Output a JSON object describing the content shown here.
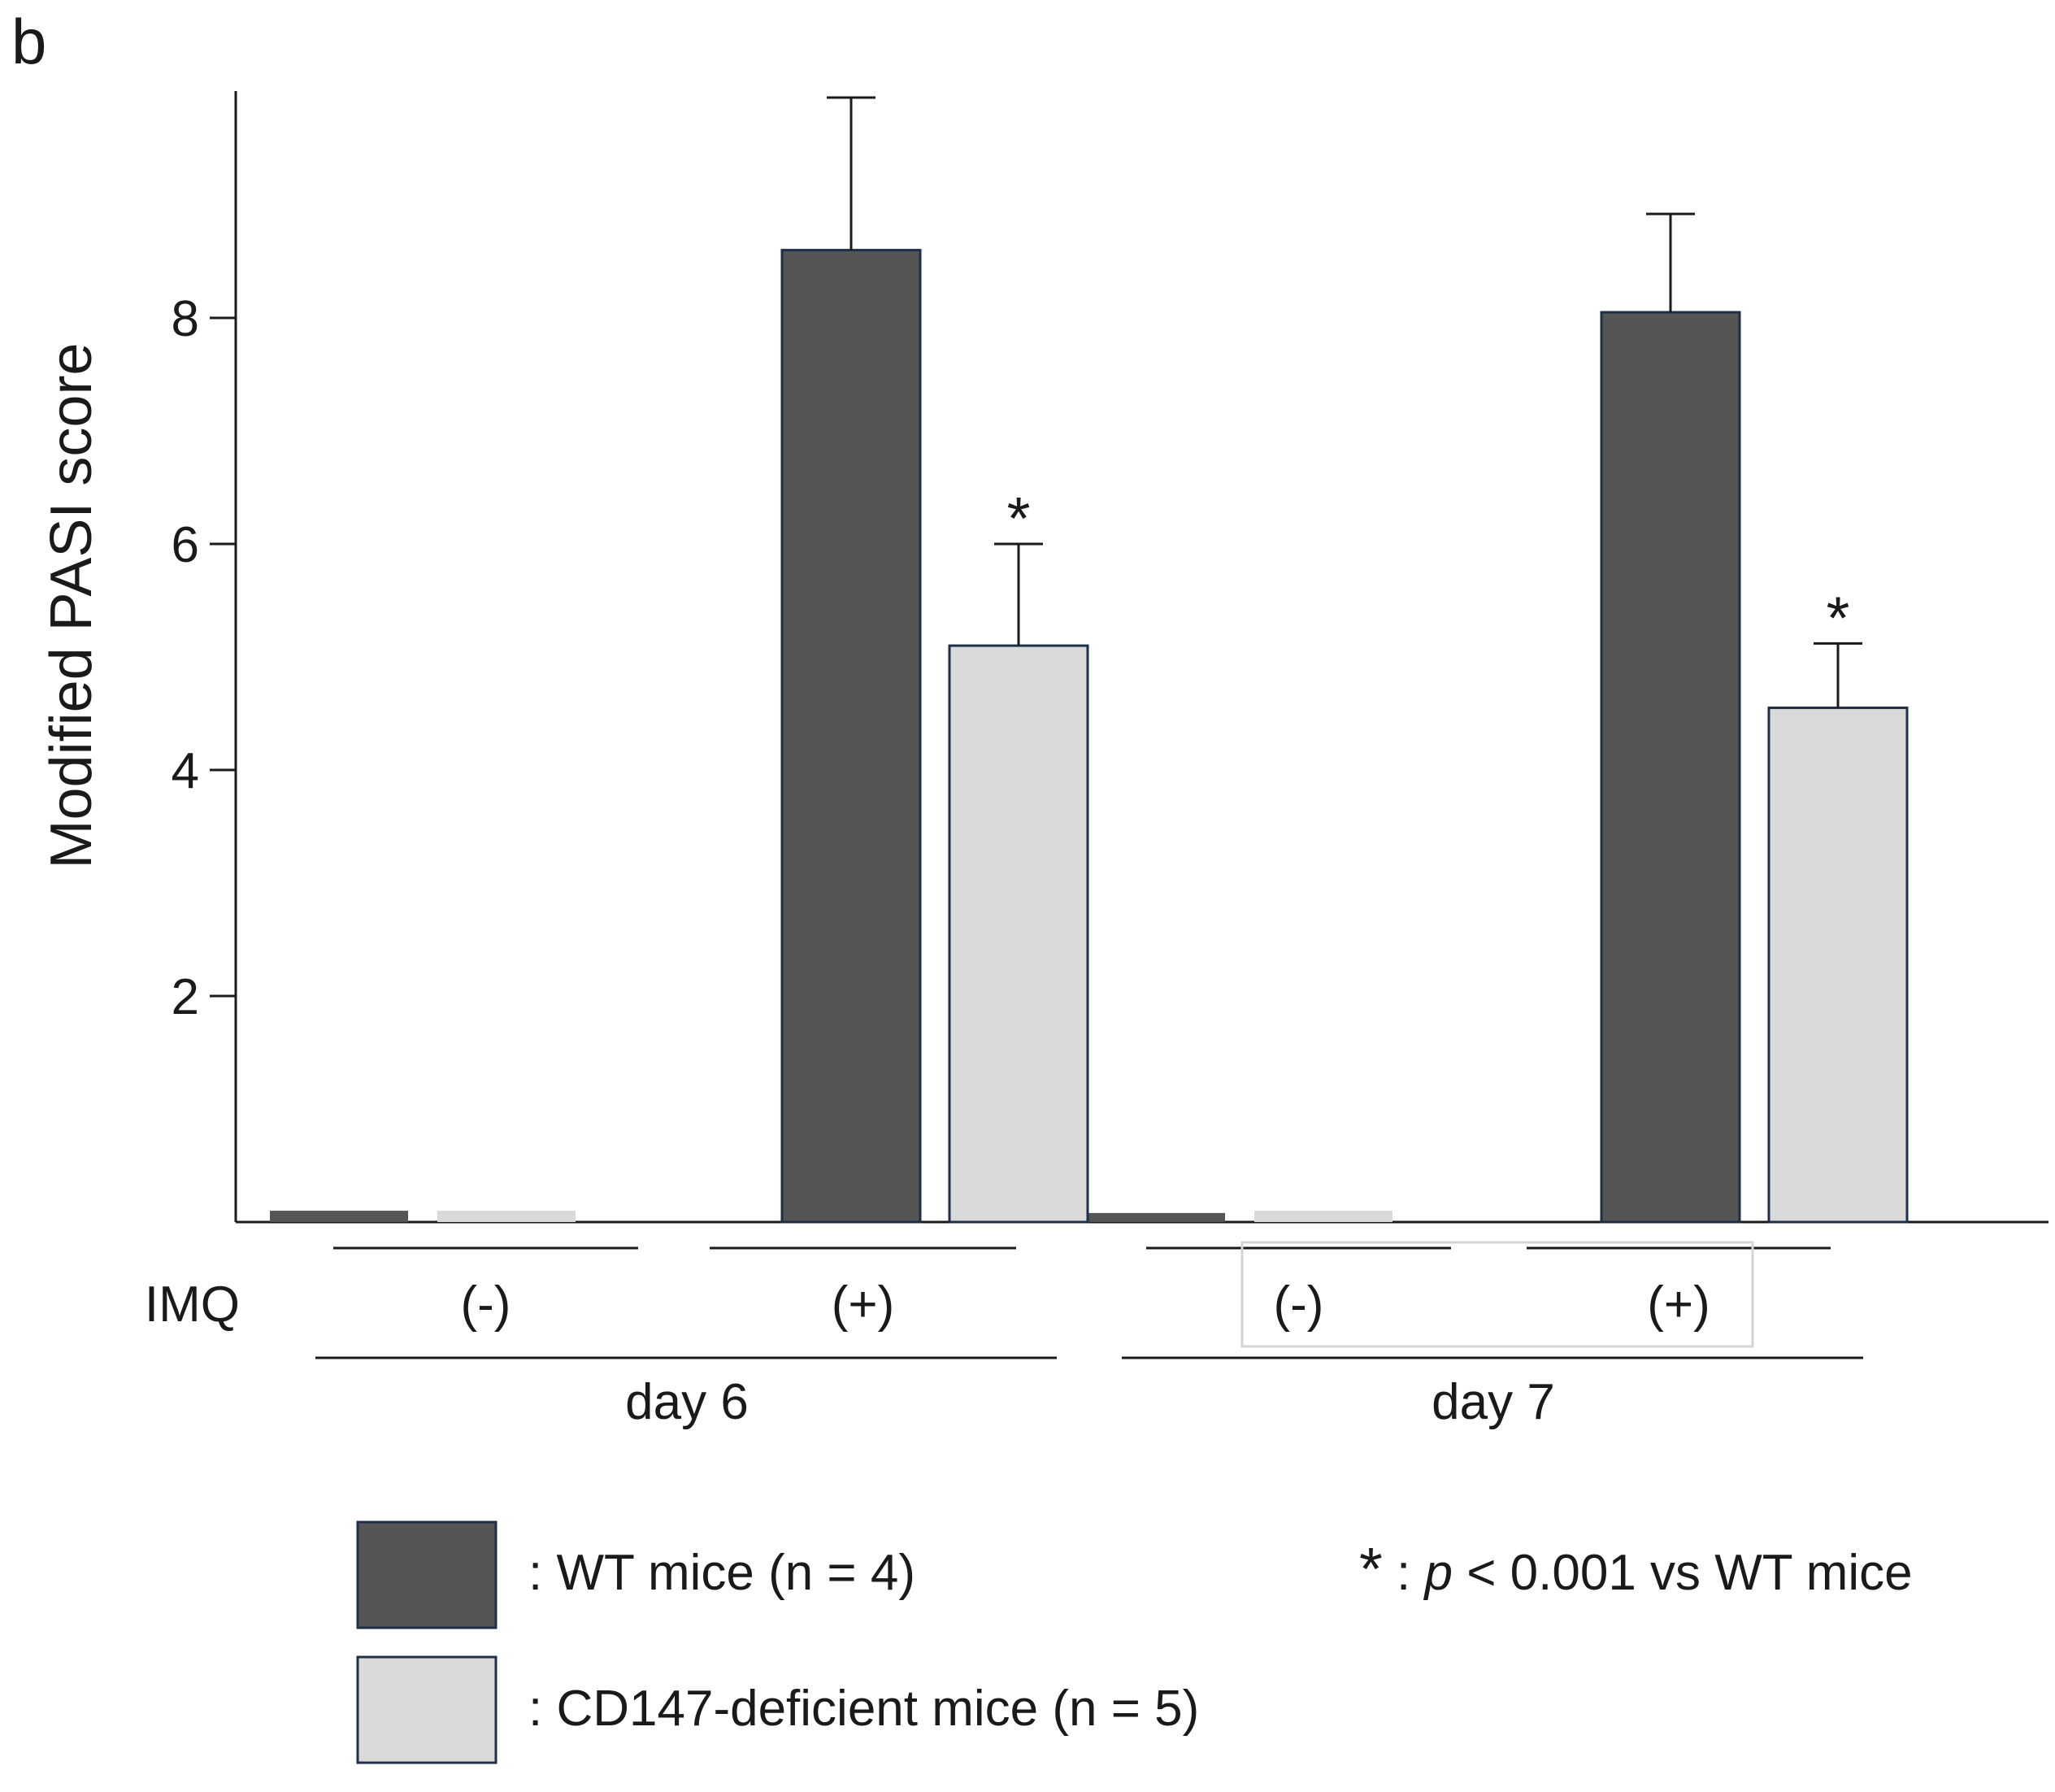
{
  "panel_label": "b",
  "colors": {
    "wt": "#555555",
    "cd147": "#d9d9d9",
    "bar_edge": "#1f2f4a",
    "axis": "#1a1a1a"
  },
  "chart_data": {
    "type": "bar",
    "title": "",
    "xlabel": "",
    "ylabel": "Modified PASI score",
    "ylim": [
      0,
      10
    ],
    "yticks": [
      2,
      4,
      6,
      8
    ],
    "row_label": "IMQ",
    "groups": [
      {
        "day": "day 6",
        "imq": "(-)"
      },
      {
        "day": "day 6",
        "imq": "(+)"
      },
      {
        "day": "day 7",
        "imq": "(-)"
      },
      {
        "day": "day 7",
        "imq": "(+)"
      }
    ],
    "days": [
      "day 6",
      "day 7"
    ],
    "series": [
      {
        "name": "WT mice (n = 4)",
        "values": [
          0.1,
          8.6,
          0.08,
          8.05
        ],
        "errors": [
          0,
          1.35,
          0,
          0.87
        ]
      },
      {
        "name": "CD147-deficient mice (n = 5)",
        "values": [
          0.1,
          5.1,
          0.1,
          4.55
        ],
        "errors": [
          0,
          0.9,
          0,
          0.57
        ]
      }
    ],
    "significance": [
      {
        "series": 1,
        "group": 1,
        "mark": "*"
      },
      {
        "series": 1,
        "group": 3,
        "mark": "*"
      }
    ]
  },
  "legend": {
    "wt_label": ": WT mice (n = 4)",
    "cd147_label": ": CD147-deficient mice (n = 5)",
    "sig_star": "*",
    "sig_colon": " : ",
    "sig_p": "p",
    "sig_rest": " < 0.001 vs WT mice"
  }
}
